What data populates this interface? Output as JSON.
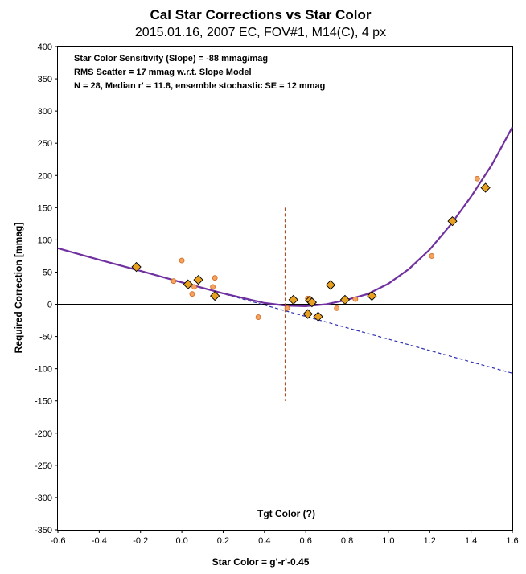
{
  "chart_data": {
    "type": "scatter",
    "title": "Cal Star Corrections  vs  Star Color",
    "subtitle": "2015.01.16,  2007  EC,  FOV#1,  M14(C),  4 px",
    "xlabel": "Star Color = g'-r'-0.45",
    "ylabel": "Required Correction [mmag]",
    "xlim": [
      -0.6,
      1.6
    ],
    "ylim": [
      -350,
      400
    ],
    "x_ticks": [
      -0.6,
      -0.4,
      -0.2,
      0.0,
      0.2,
      0.4,
      0.6,
      0.8,
      1.0,
      1.2,
      1.4,
      1.6
    ],
    "x_tick_labels": [
      "-0.6",
      "-0.4",
      "-0.2",
      "0.0",
      "0.2",
      "0.4",
      "0.6",
      "0.8",
      "1.0",
      "1.2",
      "1.4",
      "1.6"
    ],
    "y_ticks": [
      -350,
      -300,
      -250,
      -200,
      -150,
      -100,
      -50,
      0,
      50,
      100,
      150,
      200,
      250,
      300,
      350,
      400
    ],
    "grid": false,
    "annotations": [
      "Star Color Sensitivity (Slope)  =  -88 mmag/mag",
      "RMS Scatter = 17 mmag w.r.t. Slope Model",
      "N = 28,  Median r' = 11.8, ensemble stochastic SE = 12 mmag"
    ],
    "tgt_color_label": "Tgt Color (?)",
    "tgt_color_x": 0.5,
    "tgt_color_line_range": [
      -150,
      150
    ],
    "series": [
      {
        "marker": "diamond",
        "color": "#E8A020",
        "x": [
          -0.22,
          0.03,
          0.08,
          0.16,
          0.54,
          0.61,
          0.62,
          0.63,
          0.66,
          0.72,
          0.79,
          0.92,
          1.31,
          1.47
        ],
        "y": [
          58,
          31,
          38,
          13,
          7,
          -15,
          6,
          3,
          -19,
          30,
          7,
          13,
          129,
          181
        ]
      },
      {
        "marker": "circle",
        "color": "#F4A460",
        "x": [
          -0.04,
          0.0,
          0.05,
          0.06,
          0.15,
          0.16,
          0.37,
          0.51,
          0.61,
          0.63,
          0.75,
          0.84,
          1.21,
          1.43
        ],
        "y": [
          36,
          68,
          16,
          27,
          27,
          41,
          -20,
          -6,
          9,
          2,
          -6,
          8,
          75,
          195
        ]
      }
    ],
    "slope_line": {
      "style": "dashed",
      "color": "#3030B0",
      "x": [
        -0.6,
        1.6
      ],
      "y": [
        87,
        -107
      ]
    },
    "fit_curve": {
      "color": "#7030A0",
      "x": [
        -0.6,
        -0.4,
        -0.2,
        0.0,
        0.2,
        0.4,
        0.5,
        0.6,
        0.7,
        0.8,
        0.9,
        1.0,
        1.1,
        1.2,
        1.3,
        1.4,
        1.5,
        1.6
      ],
      "y": [
        87,
        69,
        52,
        34,
        17,
        2,
        -2,
        -3,
        0,
        7,
        16,
        32,
        55,
        85,
        123,
        167,
        216,
        275
      ]
    }
  }
}
